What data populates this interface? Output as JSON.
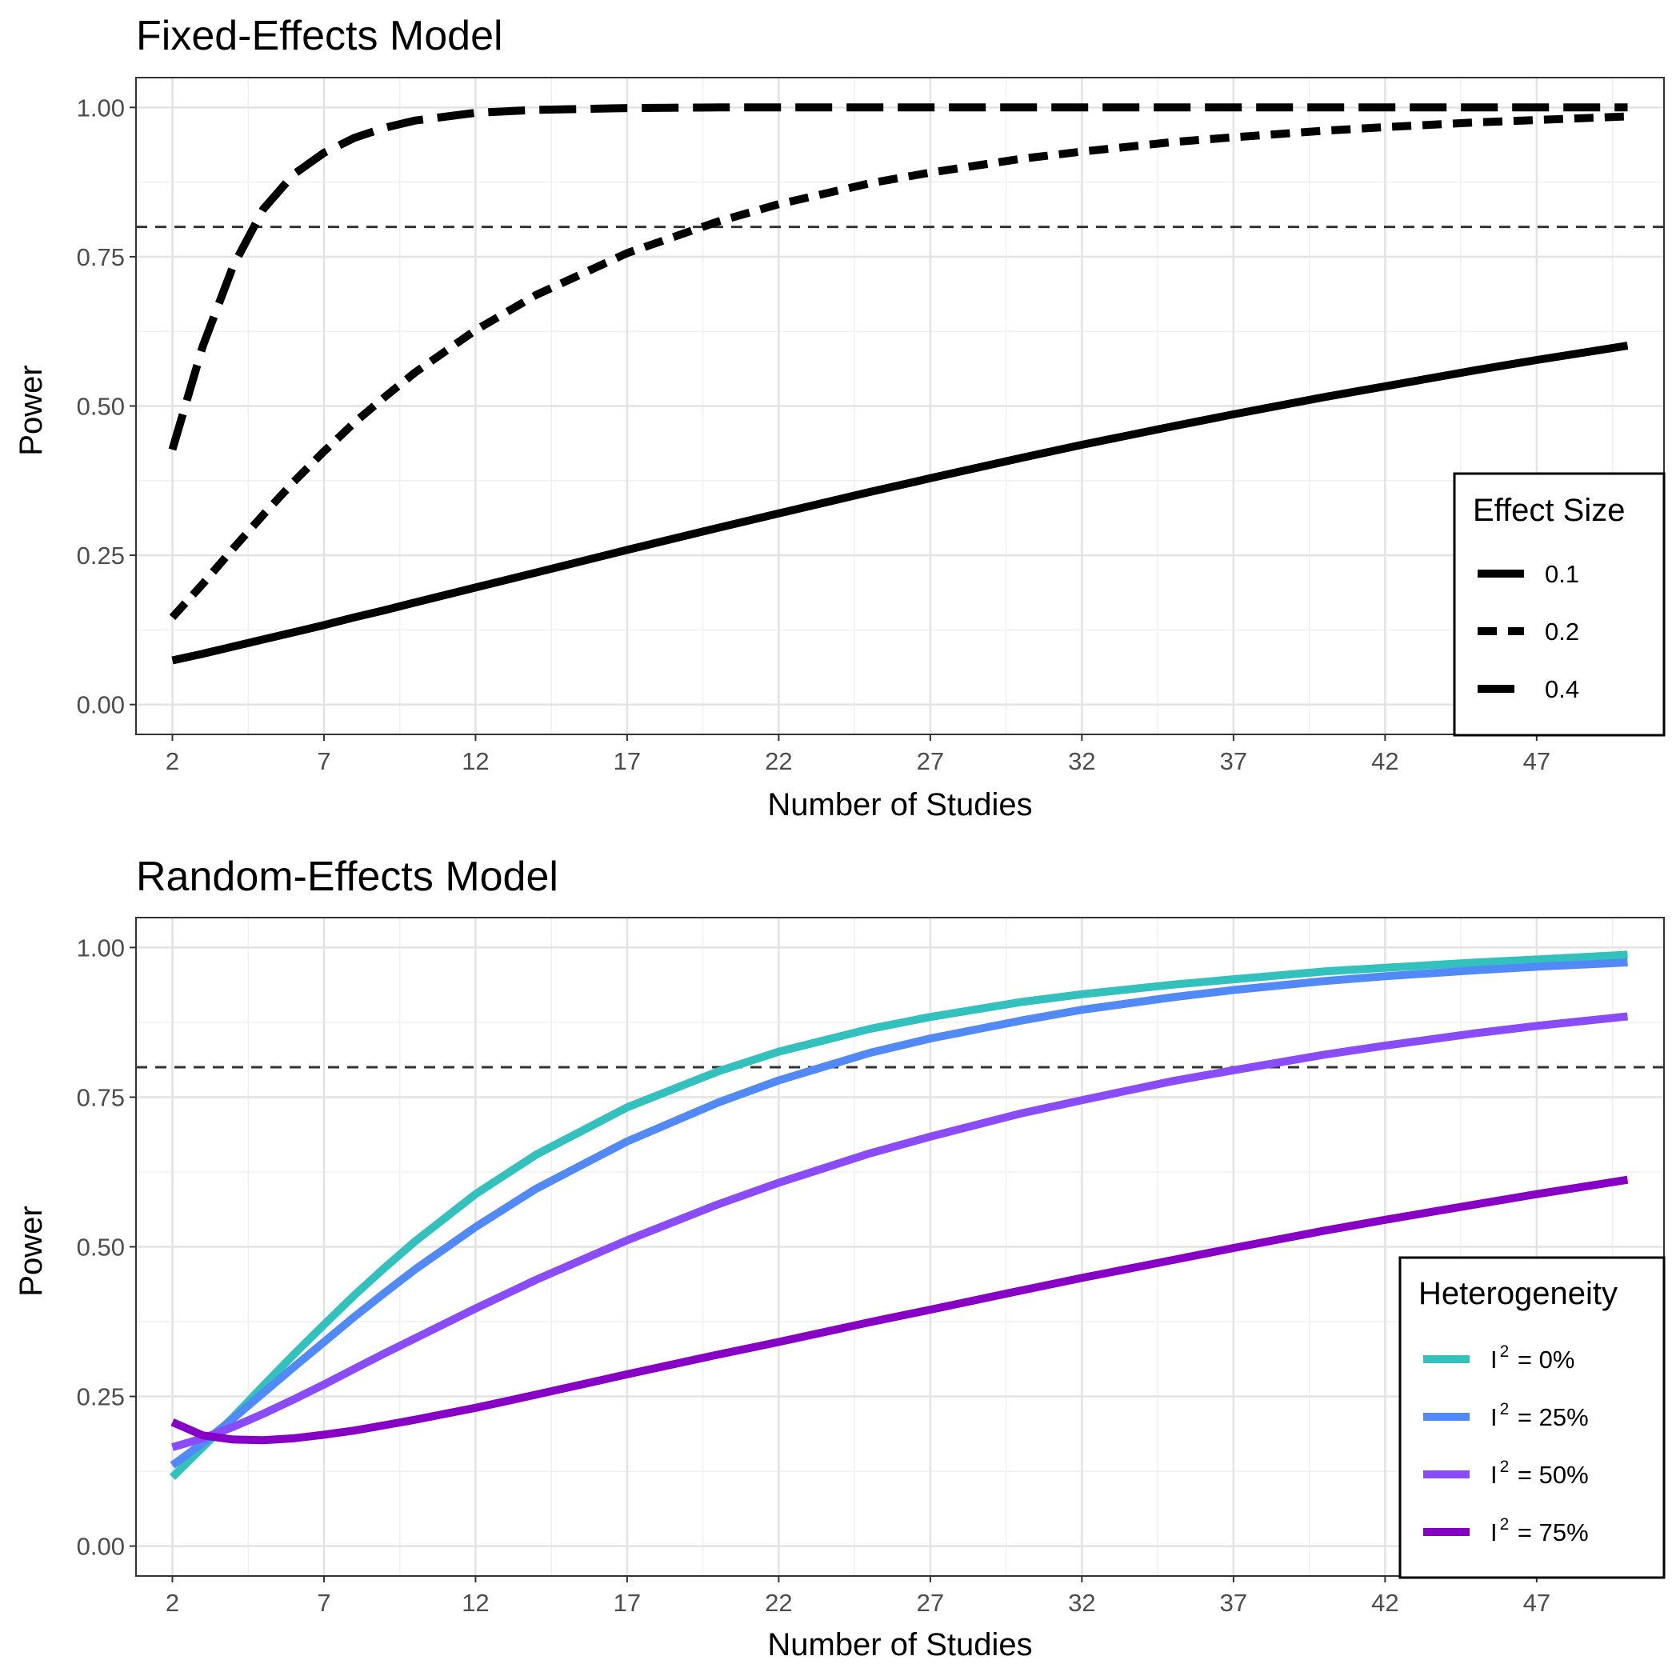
{
  "chart_data": [
    {
      "type": "line",
      "title": "Fixed-Effects Model",
      "xlabel": "Number of Studies",
      "ylabel": "Power",
      "xlim": [
        2,
        50
      ],
      "ylim": [
        0,
        1
      ],
      "x_ticks": [
        2,
        7,
        12,
        17,
        22,
        27,
        32,
        37,
        42,
        47
      ],
      "y_ticks": [
        "0.00",
        "0.25",
        "0.50",
        "0.75",
        "1.00"
      ],
      "reference_line": 0.8,
      "grid": true,
      "legend": {
        "title": "Effect Size",
        "position": "right-bottom"
      },
      "x": [
        2,
        3,
        4,
        5,
        6,
        7,
        8,
        9,
        10,
        12,
        14,
        17,
        20,
        22,
        25,
        27,
        30,
        32,
        35,
        37,
        40,
        42,
        45,
        47,
        50
      ],
      "series": [
        {
          "name": "0.1",
          "style": "solid",
          "color": "#000000",
          "values": [
            0.074,
            0.085,
            0.097,
            0.109,
            0.121,
            0.133,
            0.146,
            0.158,
            0.171,
            0.196,
            0.221,
            0.259,
            0.296,
            0.32,
            0.356,
            0.379,
            0.413,
            0.435,
            0.466,
            0.486,
            0.515,
            0.533,
            0.56,
            0.577,
            0.601
          ]
        },
        {
          "name": "0.2",
          "style": "dashed",
          "color": "#000000",
          "values": [
            0.146,
            0.202,
            0.261,
            0.318,
            0.373,
            0.424,
            0.472,
            0.515,
            0.556,
            0.627,
            0.686,
            0.756,
            0.809,
            0.838,
            0.873,
            0.891,
            0.914,
            0.926,
            0.942,
            0.95,
            0.961,
            0.967,
            0.975,
            0.979,
            0.985
          ]
        },
        {
          "name": "0.4",
          "style": "longdash",
          "color": "#000000",
          "values": [
            0.427,
            0.6,
            0.734,
            0.83,
            0.888,
            0.924,
            0.949,
            0.966,
            0.978,
            0.991,
            0.996,
            0.999,
            1.0,
            1.0,
            1.0,
            1.0,
            1.0,
            1.0,
            1.0,
            1.0,
            1.0,
            1.0,
            1.0,
            1.0,
            1.0
          ]
        }
      ]
    },
    {
      "type": "line",
      "title": "Random-Effects Model",
      "xlabel": "Number of Studies",
      "ylabel": "Power",
      "xlim": [
        2,
        50
      ],
      "ylim": [
        0,
        1
      ],
      "x_ticks": [
        2,
        7,
        12,
        17,
        22,
        27,
        32,
        37,
        42,
        47
      ],
      "y_ticks": [
        "0.00",
        "0.25",
        "0.50",
        "0.75",
        "1.00"
      ],
      "reference_line": 0.8,
      "grid": true,
      "legend": {
        "title": "Heterogeneity",
        "position": "right-bottom"
      },
      "x": [
        2,
        3,
        4,
        5,
        6,
        7,
        8,
        9,
        10,
        12,
        14,
        17,
        20,
        22,
        25,
        27,
        30,
        32,
        35,
        37,
        40,
        42,
        45,
        47,
        50
      ],
      "series": [
        {
          "name": "I² = 0%",
          "label_main": "I",
          "label_sup": "2",
          "label_rest": " = 0%",
          "color": "#33c1bd",
          "values": [
            0.115,
            0.165,
            0.215,
            0.268,
            0.32,
            0.37,
            0.419,
            0.465,
            0.509,
            0.588,
            0.654,
            0.733,
            0.793,
            0.826,
            0.864,
            0.884,
            0.909,
            0.922,
            0.938,
            0.947,
            0.96,
            0.966,
            0.975,
            0.98,
            0.988
          ]
        },
        {
          "name": "I² = 25%",
          "label_main": "I",
          "label_sup": "2",
          "label_rest": " = 25%",
          "color": "#5189f6",
          "values": [
            0.135,
            0.172,
            0.213,
            0.256,
            0.299,
            0.341,
            0.383,
            0.423,
            0.462,
            0.533,
            0.597,
            0.676,
            0.741,
            0.778,
            0.824,
            0.848,
            0.878,
            0.896,
            0.917,
            0.929,
            0.944,
            0.952,
            0.962,
            0.968,
            0.975
          ]
        },
        {
          "name": "I² = 50%",
          "label_main": "I",
          "label_sup": "2",
          "label_rest": " = 50%",
          "color": "#8a4cf8",
          "values": [
            0.165,
            0.18,
            0.199,
            0.221,
            0.245,
            0.27,
            0.296,
            0.322,
            0.347,
            0.397,
            0.445,
            0.511,
            0.571,
            0.607,
            0.656,
            0.684,
            0.723,
            0.745,
            0.777,
            0.795,
            0.821,
            0.836,
            0.857,
            0.869,
            0.885
          ]
        },
        {
          "name": "I² = 75%",
          "label_main": "I",
          "label_sup": "2",
          "label_rest": " = 75%",
          "color": "#8600c6",
          "values": [
            0.207,
            0.185,
            0.178,
            0.177,
            0.18,
            0.186,
            0.193,
            0.202,
            0.211,
            0.231,
            0.253,
            0.287,
            0.32,
            0.341,
            0.374,
            0.395,
            0.427,
            0.448,
            0.478,
            0.498,
            0.527,
            0.545,
            0.571,
            0.588,
            0.612
          ]
        }
      ]
    }
  ]
}
